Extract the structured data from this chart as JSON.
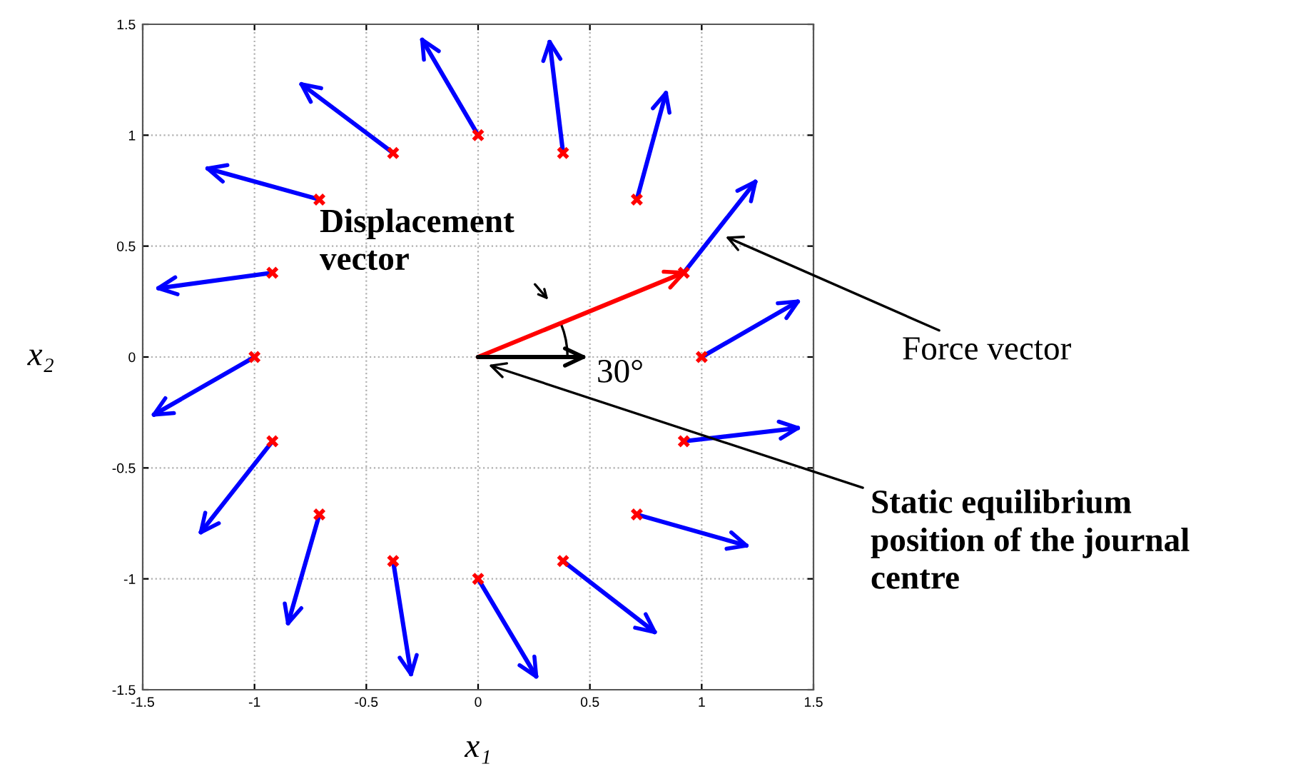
{
  "chart_data": {
    "type": "scatter",
    "xlabel": "x₁",
    "ylabel": "x₂",
    "xlim": [
      -1.5,
      1.5
    ],
    "ylim": [
      -1.5,
      1.5
    ],
    "xticks": [
      -1.5,
      -1,
      -0.5,
      0,
      0.5,
      1,
      1.5
    ],
    "yticks": [
      -1.5,
      -1,
      -0.5,
      0,
      0.5,
      1,
      1.5
    ],
    "grid": true,
    "series": [
      {
        "type": "line",
        "color": "#0000ff",
        "marker": "none",
        "x": [
          1,
          1.43,
          null,
          0.92,
          1.24,
          null,
          0.71,
          0.84,
          null,
          0.38,
          0.32,
          null,
          0,
          -0.25,
          null,
          -0.38,
          -0.79,
          null,
          -0.71,
          -1.21,
          null,
          -0.92,
          -1.43,
          null,
          -1,
          -1.45,
          null,
          -0.92,
          -1.24,
          null,
          -0.71,
          -0.85,
          null,
          -0.38,
          -0.3,
          null,
          0,
          0.26,
          null,
          0.38,
          0.79,
          null,
          0.71,
          1.2,
          null,
          0.92,
          1.43
        ],
        "values": [
          0,
          0.25,
          null,
          0.38,
          0.79,
          null,
          0.71,
          1.19,
          null,
          0.92,
          1.42,
          null,
          1,
          1.43,
          null,
          0.92,
          1.23,
          null,
          0.71,
          0.85,
          null,
          0.38,
          0.31,
          null,
          0,
          -0.26,
          null,
          -0.38,
          -0.79,
          null,
          -0.71,
          -1.2,
          null,
          -0.92,
          -1.43,
          null,
          -1,
          -1.44,
          null,
          -0.92,
          -1.24,
          null,
          -0.71,
          -0.85,
          null,
          -0.38,
          -0.32
        ]
      },
      {
        "color": "#ff0000",
        "marker": "cross",
        "x": [
          1,
          0.92,
          0.71,
          0.38,
          0,
          -0.38,
          -0.71,
          -0.92,
          -1,
          -0.92,
          -0.71,
          -0.38,
          0,
          0.38,
          0.71,
          0.92
        ],
        "values": [
          0,
          0.38,
          0.71,
          0.92,
          1,
          0.92,
          0.71,
          0.38,
          0,
          -0.38,
          -0.71,
          -0.92,
          -1,
          -0.92,
          -0.71,
          -0.38
        ]
      },
      {
        "type": "line",
        "color": "#ff0000",
        "marker": "none",
        "x": [
          0,
          0.92
        ],
        "values": [
          0,
          0.38
        ]
      },
      {
        "type": "line",
        "color": "#000000",
        "marker": "none",
        "x": [
          0,
          0.47
        ],
        "values": [
          0,
          0
        ]
      }
    ],
    "annotations": [
      "Displacement vector",
      "30°",
      {
        "text": "Force vector",
        "x": 1.09,
        "y": 0.55
      },
      {
        "text": "Static equilibrium position of the journal centre",
        "x": 0.03,
        "y": -0.03
      }
    ]
  }
}
